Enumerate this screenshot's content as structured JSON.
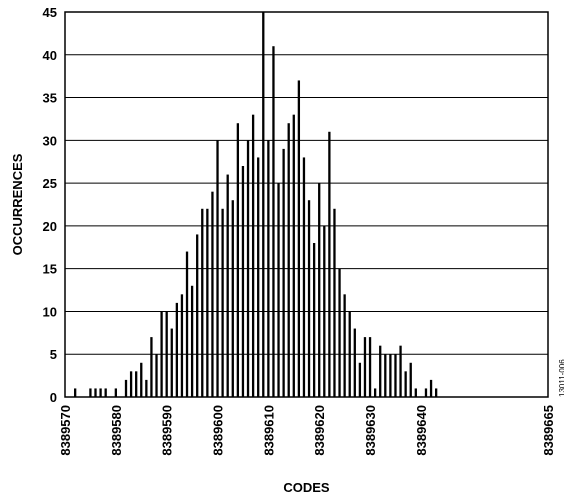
{
  "chart_data": {
    "type": "bar",
    "title": "",
    "xlabel": "CODES",
    "ylabel": "OCCURRENCES",
    "xlim": [
      8389570,
      8389665
    ],
    "ylim": [
      0,
      45
    ],
    "y_ticks": [
      "0",
      "5",
      "10",
      "15",
      "20",
      "25",
      "30",
      "35",
      "40",
      "45"
    ],
    "x_ticks": [
      "8389570",
      "8389580",
      "8389590",
      "8389600",
      "8389610",
      "8389620",
      "8389630",
      "8389640",
      "8389665"
    ],
    "grid": "horizontal",
    "figure_id": "13011-006",
    "x": [
      8389572,
      8389575,
      8389576,
      8389577,
      8389578,
      8389580,
      8389582,
      8389583,
      8389584,
      8389585,
      8389586,
      8389587,
      8389588,
      8389589,
      8389590,
      8389591,
      8389592,
      8389593,
      8389594,
      8389595,
      8389596,
      8389597,
      8389598,
      8389599,
      8389600,
      8389601,
      8389602,
      8389603,
      8389604,
      8389605,
      8389606,
      8389607,
      8389608,
      8389609,
      8389610,
      8389611,
      8389612,
      8389613,
      8389614,
      8389615,
      8389616,
      8389617,
      8389618,
      8389619,
      8389620,
      8389621,
      8389622,
      8389623,
      8389624,
      8389625,
      8389626,
      8389627,
      8389628,
      8389629,
      8389630,
      8389631,
      8389632,
      8389633,
      8389634,
      8389635,
      8389636,
      8389637,
      8389638,
      8389639,
      8389640,
      8389641,
      8389642,
      8389643
    ],
    "values": [
      1,
      1,
      1,
      1,
      1,
      1,
      2,
      3,
      3,
      4,
      2,
      7,
      5,
      10,
      10,
      8,
      11,
      12,
      17,
      13,
      19,
      22,
      22,
      24,
      30,
      22,
      26,
      23,
      32,
      27,
      30,
      33,
      28,
      45,
      30,
      41,
      25,
      29,
      32,
      33,
      37,
      28,
      23,
      18,
      25,
      20,
      31,
      22,
      15,
      12,
      10,
      8,
      4,
      7,
      7,
      1,
      6,
      5,
      5,
      5,
      6,
      3,
      4,
      1,
      0,
      1,
      2,
      1
    ]
  }
}
